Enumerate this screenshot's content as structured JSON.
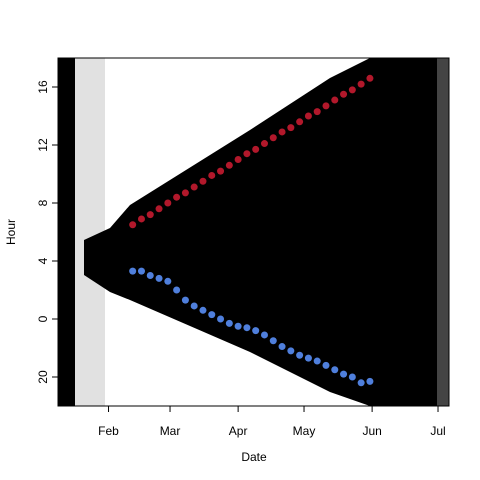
{
  "chart_data": {
    "type": "scatter",
    "x_label": "Date",
    "y_label": "Hour",
    "x": [
      42,
      46,
      50,
      54,
      58,
      62,
      66,
      70,
      74,
      78,
      82,
      86,
      90,
      94,
      98,
      102,
      106,
      110,
      114,
      118,
      122,
      126,
      130,
      134,
      138,
      142,
      146,
      150
    ],
    "series": [
      {
        "color": "#b2182b",
        "values": [
          6.5,
          6.9,
          7.2,
          7.6,
          8.0,
          8.4,
          8.7,
          9.1,
          9.5,
          9.9,
          10.2,
          10.6,
          11.0,
          11.4,
          11.7,
          12.1,
          12.5,
          12.9,
          13.2,
          13.6,
          14.0,
          14.3,
          14.7,
          15.1,
          15.5,
          15.8,
          16.2,
          16.6
        ]
      },
      {
        "color": "#4f7fdc",
        "values": [
          3.3,
          3.3,
          3.0,
          2.8,
          2.6,
          2.0,
          1.3,
          0.9,
          0.6,
          0.3,
          0.0,
          -0.3,
          -0.5,
          -0.6,
          -0.8,
          -1.1,
          -1.5,
          -1.9,
          -2.2,
          -2.5,
          -2.7,
          -2.9,
          -3.2,
          -3.5,
          -3.8,
          -4.0,
          -4.4,
          -4.3
        ]
      }
    ],
    "xlim": [
      8,
      186
    ],
    "xticks": [
      {
        "value": 31,
        "label": "Feb"
      },
      {
        "value": 59,
        "label": "Mar"
      },
      {
        "value": 90,
        "label": "Apr"
      },
      {
        "value": 120,
        "label": "May"
      },
      {
        "value": 151,
        "label": "Jun"
      },
      {
        "value": 181,
        "label": "Jul"
      }
    ],
    "ylim": [
      -6,
      18
    ],
    "yticks": [
      {
        "value": -4,
        "label": "20"
      },
      0,
      4,
      8,
      12,
      16
    ]
  }
}
